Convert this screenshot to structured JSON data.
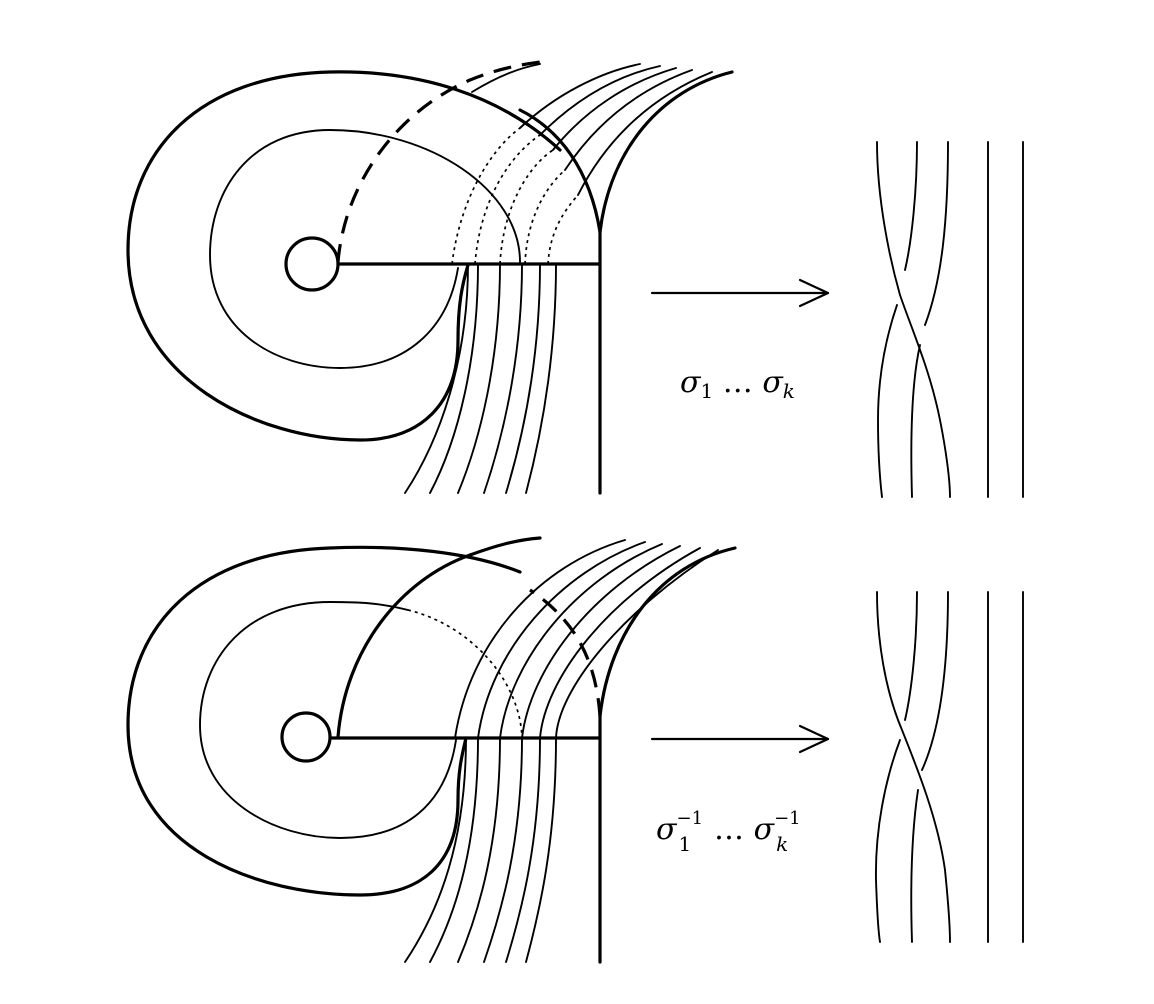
{
  "panels": [
    {
      "id": "top",
      "label": {
        "sigma": "σ",
        "first_index": "1",
        "ellipsis": "…",
        "last_index": "k",
        "exponent": ""
      }
    },
    {
      "id": "bottom",
      "label": {
        "sigma": "σ",
        "first_index": "1",
        "ellipsis": "…",
        "last_index": "k",
        "exponent": "−1"
      }
    }
  ]
}
